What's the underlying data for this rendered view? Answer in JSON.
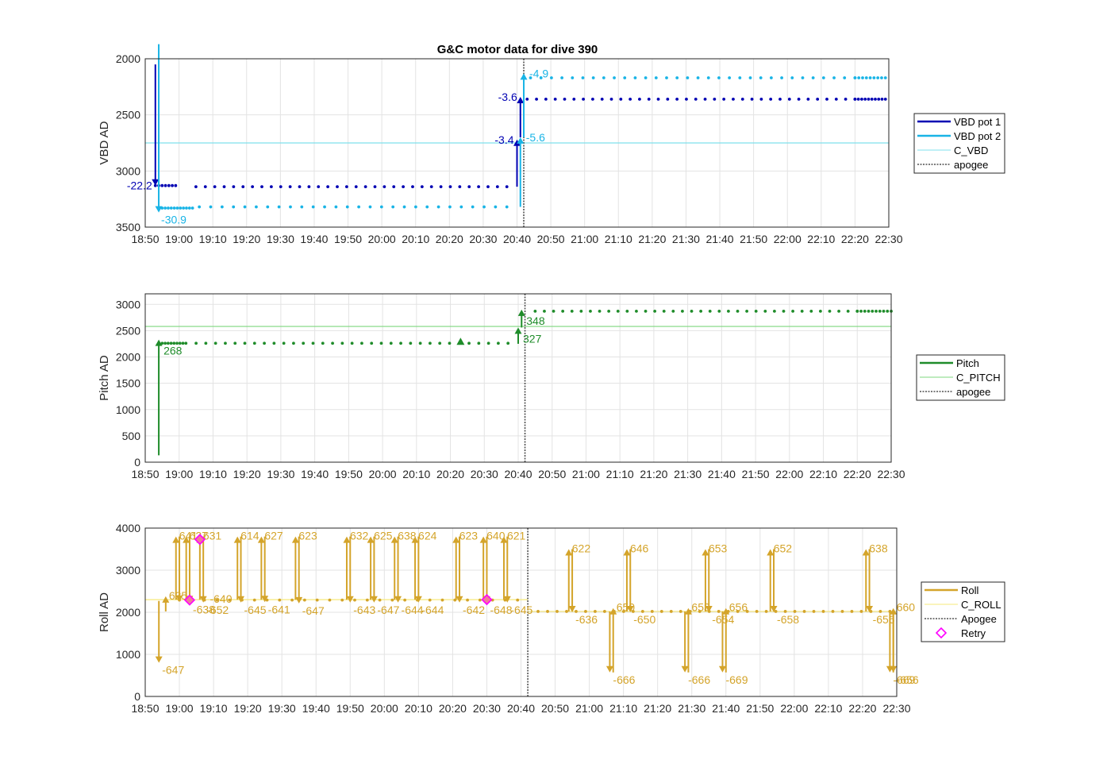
{
  "figure_title": "G&C motor data for dive 390",
  "chart_data": [
    {
      "type": "scatter",
      "title": "G&C motor data for dive 390",
      "ylabel": "VBD AD",
      "ylim": [
        3500,
        2000
      ],
      "y_reversed": true,
      "yticks": [
        "2000",
        "2500",
        "3000",
        "3500"
      ],
      "xlim": [
        "18:50",
        "22:30"
      ],
      "xticks": [
        "18:50",
        "19:00",
        "19:10",
        "19:20",
        "19:30",
        "19:40",
        "19:50",
        "20:00",
        "20:10",
        "20:20",
        "20:30",
        "20:40",
        "20:50",
        "21:00",
        "21:10",
        "21:20",
        "21:30",
        "21:40",
        "21:50",
        "22:00",
        "22:10",
        "22:20",
        "22:30"
      ],
      "grid": true,
      "legend_position": "right",
      "legend": [
        "VBD pot 1",
        "VBD pot 2",
        "C_VBD",
        "apogee"
      ],
      "colors": {
        "pot1": "#0000b3",
        "pot2": "#19b4e6",
        "c_vbd": "#7fe0ec",
        "apogee": "#505050"
      },
      "series": [
        {
          "name": "VBD pot 1",
          "segments": [
            {
              "x_start": "18:53",
              "x_end": "18:59",
              "y": 3130,
              "count": 7
            },
            {
              "x_start": "19:05",
              "x_end": "20:37",
              "y": 3140,
              "count": 34
            },
            {
              "x_start": "20:43",
              "x_end": "22:20",
              "y": 2360,
              "count": 36
            },
            {
              "x_start": "22:20",
              "x_end": "22:29",
              "y": 2360,
              "count": 10
            }
          ]
        },
        {
          "name": "VBD pot 2",
          "segments": [
            {
              "x_start": "18:55",
              "x_end": "19:04",
              "y": 3330,
              "count": 11
            },
            {
              "x_start": "19:06",
              "x_end": "20:37",
              "y": 3320,
              "count": 28
            },
            {
              "x_start": "20:44",
              "x_end": "22:20",
              "y": 2170,
              "count": 32
            },
            {
              "x_start": "22:20",
              "x_end": "22:29",
              "y": 2170,
              "count": 9
            }
          ]
        }
      ],
      "constant_lines": [
        {
          "name": "C_VBD",
          "y": 2750
        }
      ],
      "apogee": "20:42",
      "arrows": [
        {
          "x": "18:53",
          "y_from": 2050,
          "y_to": 3130,
          "label": "-22.2",
          "series": "pot1",
          "label_side": "left"
        },
        {
          "x": "18:54",
          "y_from": 1870,
          "y_to": 3370,
          "label": "-30.9",
          "series": "pot2",
          "label_side": "below"
        },
        {
          "x": "20:40",
          "y_from": 3140,
          "y_to": 2720,
          "label": "-3.4",
          "series": "pot1",
          "label_side": "left"
        },
        {
          "x": "20:41",
          "y_from": 3320,
          "y_to": 2700,
          "label": "-5.6",
          "series": "pot2",
          "label_side": "right"
        },
        {
          "x": "20:41",
          "y_from": 2700,
          "y_to": 2340,
          "label": "-3.6",
          "series": "pot1",
          "label_side": "left"
        },
        {
          "x": "20:42",
          "y_from": 2700,
          "y_to": 2130,
          "label": "-4.9",
          "series": "pot2",
          "label_side": "right"
        }
      ]
    },
    {
      "type": "scatter",
      "ylabel": "Pitch AD",
      "ylim": [
        0,
        3200
      ],
      "yticks": [
        "0",
        "500",
        "1000",
        "1500",
        "2000",
        "2500",
        "3000"
      ],
      "xlim": [
        "18:50",
        "22:30"
      ],
      "xticks": [
        "18:50",
        "19:00",
        "19:10",
        "19:20",
        "19:30",
        "19:40",
        "19:50",
        "20:00",
        "20:10",
        "20:20",
        "20:30",
        "20:40",
        "20:50",
        "21:00",
        "21:10",
        "21:20",
        "21:30",
        "21:40",
        "21:50",
        "22:00",
        "22:10",
        "22:20",
        "22:30"
      ],
      "grid": true,
      "legend_position": "right",
      "legend": [
        "Pitch",
        "C_PITCH",
        "apogee"
      ],
      "colors": {
        "pitch": "#1f8c2a",
        "c_pitch": "#7ed77e",
        "apogee": "#505050"
      },
      "series": [
        {
          "name": "Pitch",
          "segments": [
            {
              "x_start": "18:55",
              "x_end": "19:02",
              "y": 2260,
              "count": 9
            },
            {
              "x_start": "19:05",
              "x_end": "20:37",
              "y": 2260,
              "count": 33
            },
            {
              "x_start": "20:45",
              "x_end": "22:20",
              "y": 2870,
              "count": 36
            },
            {
              "x_start": "22:20",
              "x_end": "22:30",
              "y": 2870,
              "count": 10
            }
          ]
        }
      ],
      "markers": [
        {
          "x": "20:23",
          "y": 2290,
          "shape": "triangle"
        }
      ],
      "constant_lines": [
        {
          "name": "C_PITCH",
          "y": 2580
        }
      ],
      "apogee": "20:42",
      "arrows": [
        {
          "x": "18:54",
          "y_from": 130,
          "y_to": 2330,
          "label": "268",
          "label_side": "below-right"
        },
        {
          "x": "20:40",
          "y_from": 2250,
          "y_to": 2560,
          "label": "327",
          "label_side": "below-right"
        },
        {
          "x": "20:41",
          "y_from": 2560,
          "y_to": 2900,
          "label": "348",
          "label_side": "below-right"
        }
      ]
    },
    {
      "type": "scatter",
      "ylabel": "Roll AD",
      "ylim": [
        0,
        4000
      ],
      "yticks": [
        "0",
        "1000",
        "2000",
        "3000",
        "4000"
      ],
      "xlim": [
        "18:50",
        "22:30"
      ],
      "xticks": [
        "18:50",
        "19:00",
        "19:10",
        "19:20",
        "19:30",
        "19:40",
        "19:50",
        "20:00",
        "20:10",
        "20:20",
        "20:30",
        "20:40",
        "20:50",
        "21:00",
        "21:10",
        "21:20",
        "21:30",
        "21:40",
        "21:50",
        "22:00",
        "22:10",
        "22:20",
        "22:30"
      ],
      "grid": true,
      "legend_position": "right",
      "legend": [
        "Roll",
        "C_ROLL",
        "Apogee",
        "Retry"
      ],
      "colors": {
        "roll": "#d4a42a",
        "c_roll": "#f5e87a",
        "apogee": "#505050",
        "retry": "#ff00ff"
      },
      "series": [
        {
          "name": "Roll",
          "segments": [
            {
              "x_start": "19:00",
              "x_end": "20:39",
              "y": 2290,
              "count": 28
            },
            {
              "x_start": "20:45",
              "x_end": "22:28",
              "y": 2020,
              "count": 38
            }
          ]
        }
      ],
      "constant_lines": [
        {
          "name": "C_ROLL",
          "x_start": "18:50",
          "x_end": "20:42",
          "y": 2300
        },
        {
          "name": "C_ROLL",
          "x_start": "20:42",
          "x_end": "22:30",
          "y": 2020
        }
      ],
      "apogee": "20:42",
      "retries": [
        {
          "x": "19:03",
          "y": 2290
        },
        {
          "x": "19:06",
          "y": 3730
        },
        {
          "x": "20:30",
          "y": 2300
        }
      ],
      "arrows": [
        {
          "x": "18:54",
          "y_from": 2270,
          "y_to": 800,
          "label": "-647"
        },
        {
          "x": "18:56",
          "y_from": 2020,
          "y_to": 2380,
          "label": "635"
        },
        {
          "x": "18:59",
          "y_from": 2300,
          "y_to": 3800,
          "label": "641"
        },
        {
          "x": "19:00",
          "y_from": 3800,
          "y_to": 2250,
          "label": ""
        },
        {
          "x": "19:02",
          "y_from": 2300,
          "y_to": 3800,
          "label": "627"
        },
        {
          "x": "19:03",
          "y_from": 3800,
          "y_to": 2240,
          "label": "-638"
        },
        {
          "x": "19:06",
          "y_from": 2300,
          "y_to": 3800,
          "label": "631"
        },
        {
          "x": "19:07",
          "y_from": 3800,
          "y_to": 2230,
          "label": "-652"
        },
        {
          "x": "19:08",
          "y_from": 2300,
          "y_to": 2300,
          "label": "-640"
        },
        {
          "x": "19:17",
          "y_from": 2300,
          "y_to": 3800,
          "label": "614"
        },
        {
          "x": "19:18",
          "y_from": 3800,
          "y_to": 2230,
          "label": "-645"
        },
        {
          "x": "19:24",
          "y_from": 2300,
          "y_to": 3800,
          "label": "627"
        },
        {
          "x": "19:25",
          "y_from": 3800,
          "y_to": 2240,
          "label": "-641"
        },
        {
          "x": "19:34",
          "y_from": 2300,
          "y_to": 3800,
          "label": "623"
        },
        {
          "x": "19:35",
          "y_from": 3800,
          "y_to": 2210,
          "label": "-647"
        },
        {
          "x": "19:49",
          "y_from": 2300,
          "y_to": 3800,
          "label": "632"
        },
        {
          "x": "19:50",
          "y_from": 3800,
          "y_to": 2230,
          "label": "-643"
        },
        {
          "x": "19:56",
          "y_from": 2300,
          "y_to": 3800,
          "label": "625"
        },
        {
          "x": "19:57",
          "y_from": 3800,
          "y_to": 2230,
          "label": "-647"
        },
        {
          "x": "20:03",
          "y_from": 2300,
          "y_to": 3800,
          "label": "638"
        },
        {
          "x": "20:04",
          "y_from": 3800,
          "y_to": 2230,
          "label": "-644"
        },
        {
          "x": "20:09",
          "y_from": 2300,
          "y_to": 3800,
          "label": "624"
        },
        {
          "x": "20:10",
          "y_from": 3800,
          "y_to": 2230,
          "label": "-644"
        },
        {
          "x": "20:21",
          "y_from": 2300,
          "y_to": 3800,
          "label": "623"
        },
        {
          "x": "20:22",
          "y_from": 3800,
          "y_to": 2230,
          "label": "-642"
        },
        {
          "x": "20:29",
          "y_from": 2300,
          "y_to": 3800,
          "label": "640"
        },
        {
          "x": "20:30",
          "y_from": 3800,
          "y_to": 2230,
          "label": "-648"
        },
        {
          "x": "20:35",
          "y_from": 2300,
          "y_to": 3800,
          "label": "621"
        },
        {
          "x": "20:36",
          "y_from": 3800,
          "y_to": 2230,
          "label": "-645"
        },
        {
          "x": "20:54",
          "y_from": 2020,
          "y_to": 3500,
          "label": "622"
        },
        {
          "x": "20:55",
          "y_from": 3500,
          "y_to": 2000,
          "label": "-636"
        },
        {
          "x": "21:06",
          "y_from": 2020,
          "y_to": 570,
          "label": "-666"
        },
        {
          "x": "21:07",
          "y_from": 570,
          "y_to": 2100,
          "label": "650"
        },
        {
          "x": "21:11",
          "y_from": 2020,
          "y_to": 3500,
          "label": "646"
        },
        {
          "x": "21:12",
          "y_from": 3500,
          "y_to": 2000,
          "label": "-650"
        },
        {
          "x": "21:28",
          "y_from": 2020,
          "y_to": 570,
          "label": "-666"
        },
        {
          "x": "21:29",
          "y_from": 570,
          "y_to": 2100,
          "label": "653"
        },
        {
          "x": "21:34",
          "y_from": 2020,
          "y_to": 3500,
          "label": "653"
        },
        {
          "x": "21:35",
          "y_from": 3500,
          "y_to": 2000,
          "label": "-654"
        },
        {
          "x": "21:39",
          "y_from": 2020,
          "y_to": 570,
          "label": "-669"
        },
        {
          "x": "21:40",
          "y_from": 570,
          "y_to": 2100,
          "label": "656"
        },
        {
          "x": "21:53",
          "y_from": 2020,
          "y_to": 3500,
          "label": "652"
        },
        {
          "x": "21:54",
          "y_from": 3500,
          "y_to": 2000,
          "label": "-658"
        },
        {
          "x": "22:21",
          "y_from": 2020,
          "y_to": 3500,
          "label": "638"
        },
        {
          "x": "22:22",
          "y_from": 3500,
          "y_to": 2000,
          "label": "-656"
        },
        {
          "x": "22:28",
          "y_from": 2020,
          "y_to": 570,
          "label": "-669"
        },
        {
          "x": "22:29",
          "y_from": 570,
          "y_to": 2100,
          "label": "660"
        },
        {
          "x": "22:29",
          "y_from": 2020,
          "y_to": 570,
          "label": "-656"
        }
      ]
    }
  ]
}
